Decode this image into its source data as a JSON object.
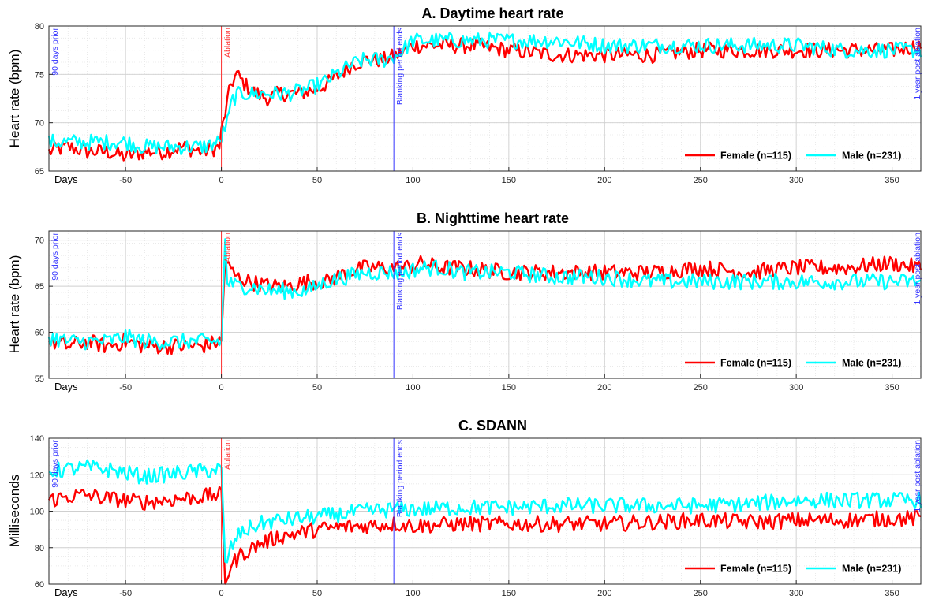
{
  "colors": {
    "female": "#ff0000",
    "male": "#00ffff",
    "ablation": "#ff3333",
    "marker": "#3333ff"
  },
  "legend": {
    "female": "Female (n=115)",
    "male": "Male (n=231)",
    "placement": "bottom-right"
  },
  "xaxis": {
    "label": "Days",
    "ticks": [
      "-50",
      "0",
      "50",
      "100",
      "150",
      "200",
      "250",
      "300",
      "350"
    ],
    "range": [
      -90,
      365
    ]
  },
  "vlines": {
    "prior": "90 days prior",
    "ablation": "Ablation",
    "blanking": "Blanking period ends",
    "post": "1 year post ablation"
  },
  "chart_data": [
    {
      "type": "line",
      "title": "A. Daytime heart rate",
      "ylabel": "Heart rate (bpm)",
      "ylim": [
        65,
        80
      ],
      "yticks": [
        "65",
        "70",
        "75",
        "80"
      ],
      "grid": true,
      "series": [
        {
          "name": "Female (n=115)",
          "points": [
            [
              -90,
              67
            ],
            [
              -80,
              67.5
            ],
            [
              -70,
              67
            ],
            [
              -60,
              67
            ],
            [
              -50,
              66.5
            ],
            [
              -40,
              67
            ],
            [
              -30,
              67
            ],
            [
              -20,
              67.5
            ],
            [
              -10,
              67
            ],
            [
              -1,
              67.5
            ],
            [
              0,
              69
            ],
            [
              3,
              72
            ],
            [
              5,
              74
            ],
            [
              8,
              75
            ],
            [
              12,
              74
            ],
            [
              18,
              73
            ],
            [
              25,
              72.5
            ],
            [
              30,
              73
            ],
            [
              40,
              73
            ],
            [
              50,
              73.5
            ],
            [
              55,
              74
            ],
            [
              62,
              75
            ],
            [
              68,
              76
            ],
            [
              75,
              76.5
            ],
            [
              85,
              76.5
            ],
            [
              92,
              77
            ],
            [
              100,
              78
            ],
            [
              110,
              78
            ],
            [
              130,
              78
            ],
            [
              150,
              77.5
            ],
            [
              175,
              77
            ],
            [
              200,
              77
            ],
            [
              225,
              77
            ],
            [
              250,
              77.5
            ],
            [
              275,
              77.5
            ],
            [
              300,
              77.5
            ],
            [
              325,
              77.5
            ],
            [
              350,
              77.5
            ],
            [
              365,
              78
            ]
          ]
        },
        {
          "name": "Male (n=231)",
          "points": [
            [
              -90,
              68
            ],
            [
              -80,
              68
            ],
            [
              -70,
              68
            ],
            [
              -60,
              68
            ],
            [
              -50,
              68
            ],
            [
              -40,
              67.5
            ],
            [
              -30,
              67.5
            ],
            [
              -20,
              67.5
            ],
            [
              -10,
              67.5
            ],
            [
              -1,
              68
            ],
            [
              0,
              68.5
            ],
            [
              3,
              70
            ],
            [
              6,
              72.5
            ],
            [
              10,
              73
            ],
            [
              18,
              73
            ],
            [
              25,
              73
            ],
            [
              35,
              73
            ],
            [
              45,
              73.5
            ],
            [
              52,
              74
            ],
            [
              60,
              75
            ],
            [
              68,
              76
            ],
            [
              75,
              76.5
            ],
            [
              85,
              76.5
            ],
            [
              92,
              77
            ],
            [
              100,
              78.5
            ],
            [
              110,
              78.5
            ],
            [
              130,
              78.5
            ],
            [
              150,
              78.5
            ],
            [
              175,
              78.5
            ],
            [
              200,
              78
            ],
            [
              225,
              78
            ],
            [
              250,
              78
            ],
            [
              275,
              78
            ],
            [
              300,
              78
            ],
            [
              325,
              77.5
            ],
            [
              350,
              77.5
            ],
            [
              365,
              77.5
            ]
          ]
        }
      ]
    },
    {
      "type": "line",
      "title": "B. Nighttime heart rate",
      "ylabel": "Heart rate (bpm)",
      "ylim": [
        55,
        71
      ],
      "yticks": [
        "55",
        "60",
        "65",
        "70"
      ],
      "grid": true,
      "series": [
        {
          "name": "Female (n=115)",
          "points": [
            [
              -90,
              59
            ],
            [
              -80,
              58.5
            ],
            [
              -70,
              59
            ],
            [
              -60,
              58.5
            ],
            [
              -50,
              59
            ],
            [
              -40,
              58.5
            ],
            [
              -30,
              58.5
            ],
            [
              -20,
              58.5
            ],
            [
              -10,
              58.5
            ],
            [
              -1,
              59
            ],
            [
              0,
              59
            ],
            [
              2,
              68
            ],
            [
              4,
              67
            ],
            [
              8,
              66
            ],
            [
              15,
              65.5
            ],
            [
              25,
              65
            ],
            [
              35,
              65
            ],
            [
              45,
              65.5
            ],
            [
              55,
              65.5
            ],
            [
              65,
              66.5
            ],
            [
              75,
              67
            ],
            [
              85,
              67
            ],
            [
              95,
              67
            ],
            [
              105,
              67.5
            ],
            [
              115,
              67
            ],
            [
              125,
              67
            ],
            [
              150,
              66.5
            ],
            [
              175,
              66.5
            ],
            [
              200,
              66.5
            ],
            [
              225,
              66.5
            ],
            [
              250,
              67
            ],
            [
              275,
              66.5
            ],
            [
              300,
              67
            ],
            [
              325,
              67
            ],
            [
              350,
              67.5
            ],
            [
              365,
              67
            ]
          ]
        },
        {
          "name": "Male (n=231)",
          "points": [
            [
              -90,
              59.5
            ],
            [
              -80,
              59
            ],
            [
              -70,
              59
            ],
            [
              -60,
              59
            ],
            [
              -50,
              59.5
            ],
            [
              -40,
              59
            ],
            [
              -30,
              59
            ],
            [
              -20,
              59
            ],
            [
              -10,
              59
            ],
            [
              -1,
              59
            ],
            [
              0,
              59
            ],
            [
              2,
              70
            ],
            [
              3,
              65.5
            ],
            [
              8,
              65
            ],
            [
              15,
              65
            ],
            [
              25,
              64.5
            ],
            [
              35,
              64.5
            ],
            [
              45,
              64.5
            ],
            [
              55,
              65.5
            ],
            [
              65,
              66
            ],
            [
              75,
              66.5
            ],
            [
              85,
              66.5
            ],
            [
              95,
              66.5
            ],
            [
              105,
              67
            ],
            [
              115,
              67
            ],
            [
              125,
              66.5
            ],
            [
              150,
              66.5
            ],
            [
              175,
              66
            ],
            [
              200,
              66
            ],
            [
              225,
              65.5
            ],
            [
              250,
              65.5
            ],
            [
              275,
              65.5
            ],
            [
              300,
              65.5
            ],
            [
              325,
              65.5
            ],
            [
              350,
              65.5
            ],
            [
              365,
              65.5
            ]
          ]
        }
      ]
    },
    {
      "type": "line",
      "title": "C. SDANN",
      "ylabel": "Milliseconds",
      "ylim": [
        60,
        140
      ],
      "yticks": [
        "60",
        "80",
        "100",
        "120",
        "140"
      ],
      "grid": true,
      "series": [
        {
          "name": "Female (n=115)",
          "points": [
            [
              -90,
              106
            ],
            [
              -80,
              108
            ],
            [
              -70,
              109
            ],
            [
              -60,
              107
            ],
            [
              -50,
              106
            ],
            [
              -40,
              105
            ],
            [
              -30,
              106
            ],
            [
              -20,
              107
            ],
            [
              -10,
              108
            ],
            [
              -1,
              109
            ],
            [
              0,
              108
            ],
            [
              2,
              62
            ],
            [
              5,
              70
            ],
            [
              10,
              76
            ],
            [
              20,
              82
            ],
            [
              30,
              86
            ],
            [
              40,
              88
            ],
            [
              50,
              90
            ],
            [
              60,
              91
            ],
            [
              75,
              92
            ],
            [
              90,
              93
            ],
            [
              100,
              92
            ],
            [
              125,
              93
            ],
            [
              150,
              93
            ],
            [
              175,
              93
            ],
            [
              200,
              93
            ],
            [
              225,
              94
            ],
            [
              250,
              95
            ],
            [
              275,
              94
            ],
            [
              300,
              95
            ],
            [
              325,
              95
            ],
            [
              350,
              96
            ],
            [
              365,
              96
            ]
          ]
        },
        {
          "name": "Male (n=231)",
          "points": [
            [
              -90,
              122
            ],
            [
              -80,
              123
            ],
            [
              -70,
              124
            ],
            [
              -60,
              123
            ],
            [
              -50,
              121
            ],
            [
              -40,
              119
            ],
            [
              -30,
              120
            ],
            [
              -20,
              121
            ],
            [
              -10,
              122
            ],
            [
              -1,
              123
            ],
            [
              0,
              122
            ],
            [
              2,
              70
            ],
            [
              5,
              80
            ],
            [
              10,
              88
            ],
            [
              20,
              93
            ],
            [
              30,
              95
            ],
            [
              40,
              96
            ],
            [
              50,
              97
            ],
            [
              60,
              98
            ],
            [
              75,
              100
            ],
            [
              90,
              101
            ],
            [
              100,
              101
            ],
            [
              125,
              102
            ],
            [
              150,
              102
            ],
            [
              175,
              103
            ],
            [
              200,
              103
            ],
            [
              225,
              103
            ],
            [
              250,
              103
            ],
            [
              275,
              104
            ],
            [
              300,
              106
            ],
            [
              325,
              106
            ],
            [
              350,
              106
            ],
            [
              365,
              106
            ]
          ]
        }
      ]
    }
  ]
}
